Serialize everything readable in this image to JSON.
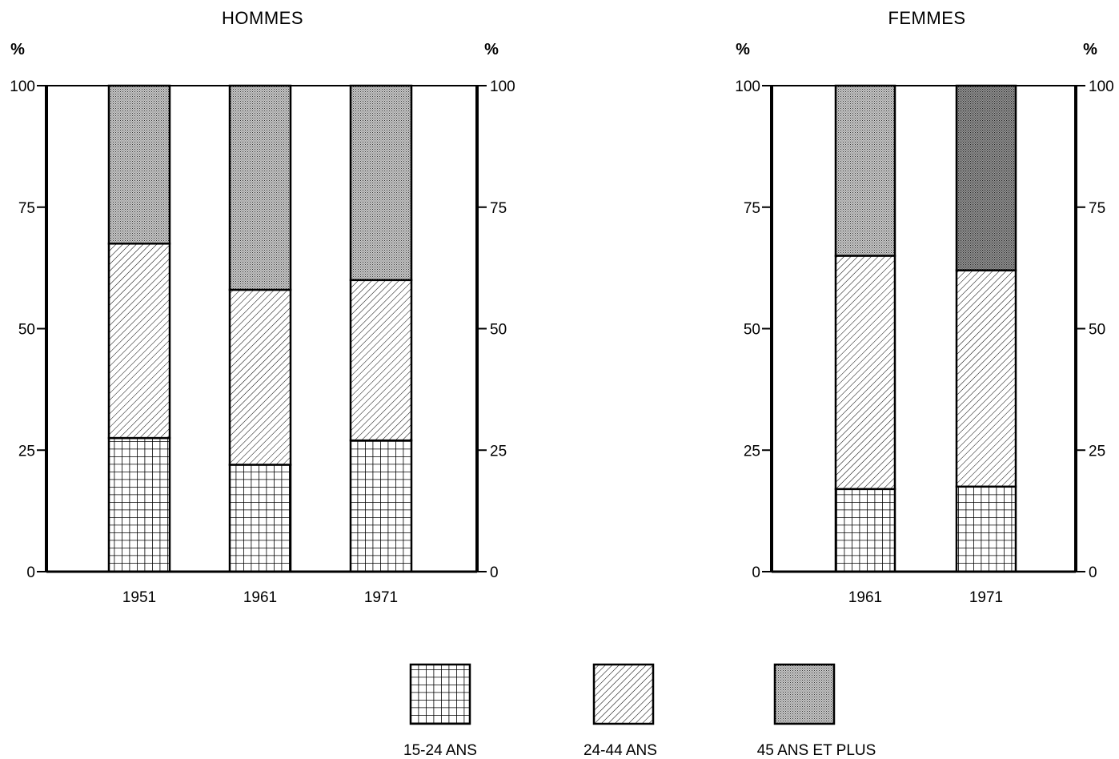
{
  "chart_data": [
    {
      "type": "bar",
      "stacked": true,
      "title": "HOMMES",
      "ylabel_left": "%",
      "ylabel_right": "%",
      "ylim": [
        0,
        100
      ],
      "yticks": [
        "0",
        "25",
        "50",
        "75",
        "100"
      ],
      "categories": [
        "1951",
        "1961",
        "1971"
      ],
      "series": [
        {
          "name": "15-24 ANS",
          "values": [
            27.5,
            22,
            27
          ]
        },
        {
          "name": "24-44 ANS",
          "values": [
            40,
            36,
            33
          ]
        },
        {
          "name": "45 ANS ET PLUS",
          "values": [
            32.5,
            42,
            40
          ]
        }
      ]
    },
    {
      "type": "bar",
      "stacked": true,
      "title": "FEMMES",
      "ylabel_left": "%",
      "ylabel_right": "%",
      "ylim": [
        0,
        100
      ],
      "yticks": [
        "0",
        "25",
        "50",
        "75",
        "100"
      ],
      "categories": [
        "1961",
        "1971"
      ],
      "series": [
        {
          "name": "15-24 ANS",
          "values": [
            17,
            17.5
          ]
        },
        {
          "name": "24-44 ANS",
          "values": [
            48,
            44.5
          ]
        },
        {
          "name": "45 ANS ET PLUS",
          "values": [
            35,
            38
          ]
        }
      ]
    }
  ],
  "legend": {
    "items": [
      {
        "label": "15-24 ANS",
        "pattern": "grid"
      },
      {
        "label": "24-44 ANS",
        "pattern": "hatch"
      },
      {
        "label": "45 ANS ET PLUS",
        "pattern": "dots"
      }
    ]
  }
}
